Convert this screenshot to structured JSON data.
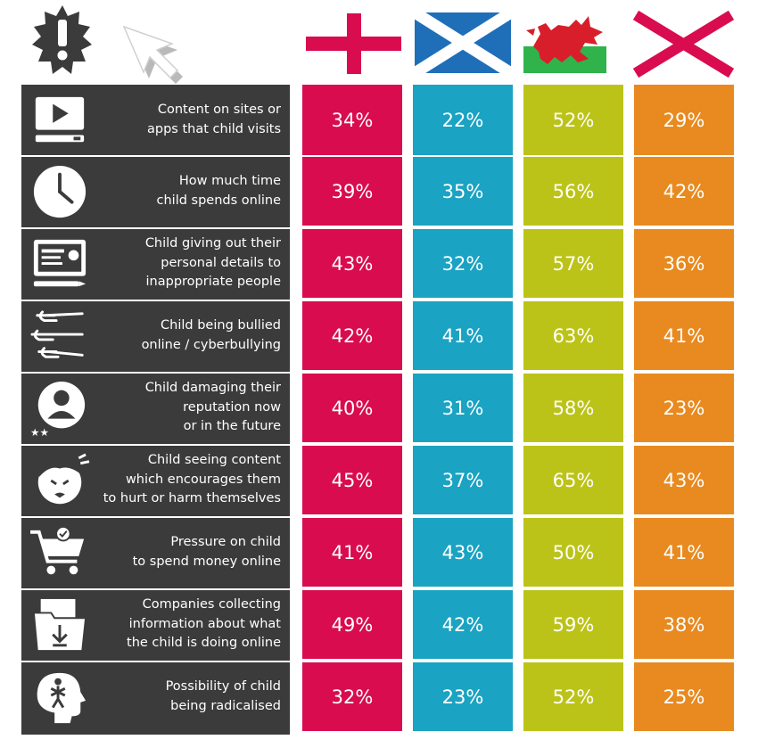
{
  "chart_data": {
    "type": "table",
    "columns": [
      {
        "icon": "england-flag-icon",
        "color": "#d90c50"
      },
      {
        "icon": "scotland-flag-icon",
        "color": "#1aa3c2"
      },
      {
        "icon": "wales-flag-icon",
        "color": "#bcc318"
      },
      {
        "icon": "northern-ireland-flag-icon",
        "color": "#e88a1f"
      }
    ],
    "rows": [
      {
        "label": "Content on sites or\napps that child visits",
        "icon": "video-player-icon",
        "values": [
          "34%",
          "22%",
          "52%",
          "29%"
        ]
      },
      {
        "label": "How much time\nchild spends online",
        "icon": "clock-icon",
        "values": [
          "39%",
          "35%",
          "56%",
          "42%"
        ]
      },
      {
        "label": "Child giving out their\npersonal details to\ninappropriate people",
        "icon": "profile-card-icon",
        "values": [
          "43%",
          "32%",
          "57%",
          "36%"
        ]
      },
      {
        "label": "Child being bullied\nonline / cyberbullying",
        "icon": "pointing-hands-icon",
        "values": [
          "42%",
          "41%",
          "63%",
          "41%"
        ]
      },
      {
        "label": "Child damaging their\nreputation now\nor in the future",
        "icon": "user-rating-icon",
        "values": [
          "40%",
          "31%",
          "58%",
          "23%"
        ]
      },
      {
        "label": "Child seeing content\nwhich encourages them\nto hurt or harm themselves",
        "icon": "hurt-child-icon",
        "values": [
          "45%",
          "37%",
          "65%",
          "43%"
        ]
      },
      {
        "label": "Pressure on child\nto spend money online",
        "icon": "shopping-cart-icon",
        "values": [
          "41%",
          "43%",
          "50%",
          "41%"
        ]
      },
      {
        "label": "Companies collecting\ninformation about what\nthe child is doing online",
        "icon": "folder-download-icon",
        "values": [
          "49%",
          "42%",
          "59%",
          "38%"
        ]
      },
      {
        "label": "Possibility of child\nbeing radicalised",
        "icon": "head-figure-icon",
        "values": [
          "32%",
          "23%",
          "52%",
          "25%"
        ]
      }
    ]
  },
  "header": {
    "alert_icon": "alert-badge-icon",
    "cursor_icon": "cursor-arrow-icon"
  },
  "colors": {
    "label_bg": "#3b3b3b",
    "england": "#d90c50",
    "scotland": "#1aa3c2",
    "wales": "#bcc318",
    "northern_ireland": "#e88a1f"
  }
}
